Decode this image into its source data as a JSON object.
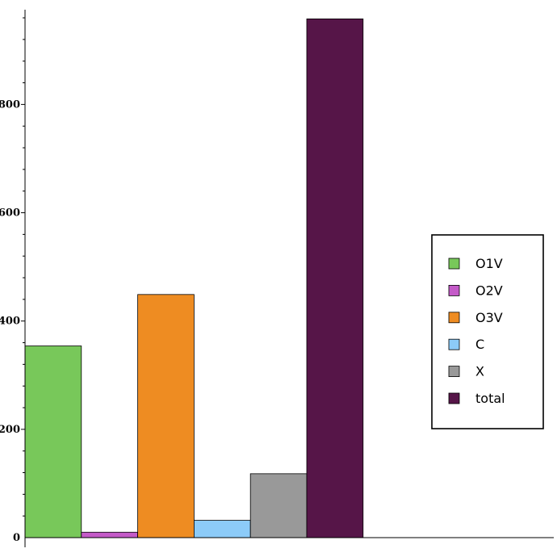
{
  "chart_data": {
    "type": "bar",
    "categories": [
      "O1V",
      "O2V",
      "O3V",
      "C",
      "X",
      "total"
    ],
    "values": [
      354,
      10,
      449,
      32,
      118,
      958
    ],
    "colors": [
      "#78c85a",
      "#c45ac8",
      "#ee8c22",
      "#8ccbf8",
      "#999999",
      "#561548"
    ],
    "ylim": [
      0,
      975
    ],
    "yticks": [
      0,
      200,
      400,
      600,
      800
    ],
    "ytick_labels": [
      "0",
      "200",
      "400",
      "600",
      "800"
    ],
    "minor_tick_step": 40,
    "legend_position": "right",
    "grid": false
  }
}
